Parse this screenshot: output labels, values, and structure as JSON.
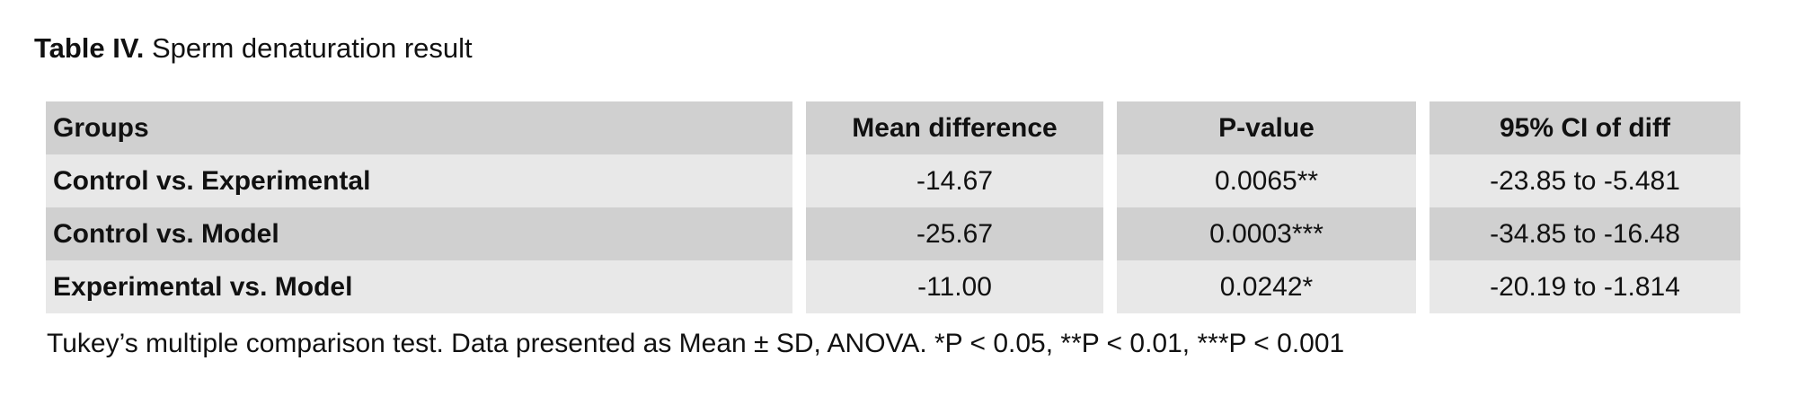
{
  "caption": {
    "label": "Table IV.",
    "title": "Sperm denaturation result"
  },
  "table": {
    "header": [
      "Groups",
      "Mean difference",
      "P-value",
      "95% CI of diff"
    ],
    "rows": [
      [
        "Control vs. Experimental",
        "-14.67",
        "0.0065**",
        "-23.85 to -5.481"
      ],
      [
        "Control vs. Model",
        "-25.67",
        "0.0003***",
        "-34.85 to -16.48"
      ],
      [
        "Experimental vs. Model",
        "-11.00",
        "0.0242*",
        "-20.19 to -1.814"
      ]
    ]
  },
  "footnote": "Tukey’s multiple comparison test. Data presented as Mean ± SD, ANOVA. *P < 0.05, **P < 0.01, ***P < 0.001"
}
